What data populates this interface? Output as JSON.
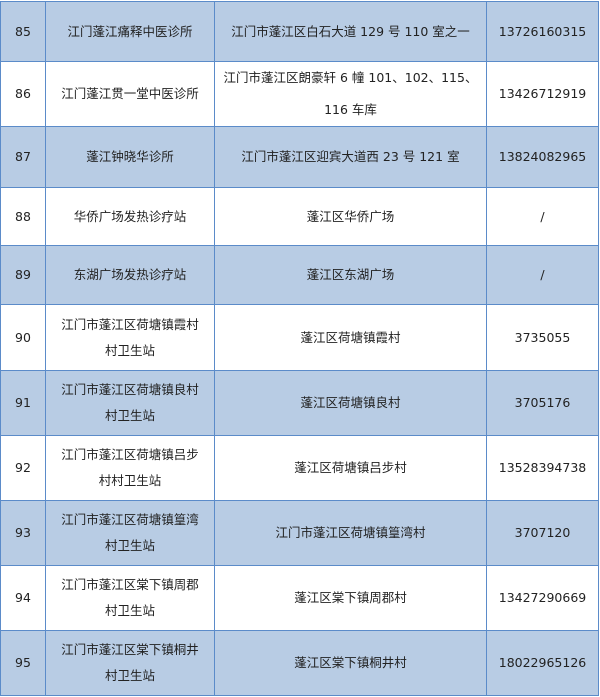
{
  "colors": {
    "shaded_row": "#b8cce4",
    "border": "#5b8bc9"
  },
  "rows": [
    {
      "no": "85",
      "name": "江门蓬江痛释中医诊所",
      "address": "江门市蓬江区白石大道 129 号 110 室之一",
      "phone": "13726160315"
    },
    {
      "no": "86",
      "name": "江门蓬江贯一堂中医诊所",
      "address": "江门市蓬江区朗豪轩 6 幢 101、102、115、116 车库",
      "phone": "13426712919"
    },
    {
      "no": "87",
      "name": "蓬江钟晓华诊所",
      "address": "江门市蓬江区迎宾大道西 23 号 121 室",
      "phone": "13824082965"
    },
    {
      "no": "88",
      "name": "华侨广场发热诊疗站",
      "address": "蓬江区华侨广场",
      "phone": "/"
    },
    {
      "no": "89",
      "name": "东湖广场发热诊疗站",
      "address": "蓬江区东湖广场",
      "phone": "/"
    },
    {
      "no": "90",
      "name": "江门市蓬江区荷塘镇霞村村卫生站",
      "address": "蓬江区荷塘镇霞村",
      "phone": "3735055"
    },
    {
      "no": "91",
      "name": "江门市蓬江区荷塘镇良村村卫生站",
      "address": "蓬江区荷塘镇良村",
      "phone": "3705176"
    },
    {
      "no": "92",
      "name": "江门市蓬江区荷塘镇吕步村村卫生站",
      "address": "蓬江区荷塘镇吕步村",
      "phone": "13528394738"
    },
    {
      "no": "93",
      "name": "江门市蓬江区荷塘镇篁湾村卫生站",
      "address": "江门市蓬江区荷塘镇篁湾村",
      "phone": "3707120"
    },
    {
      "no": "94",
      "name": "江门市蓬江区棠下镇周郡村卫生站",
      "address": "蓬江区棠下镇周郡村",
      "phone": "13427290669"
    },
    {
      "no": "95",
      "name": "江门市蓬江区棠下镇桐井村卫生站",
      "address": "蓬江区棠下镇桐井村",
      "phone": "18022965126"
    }
  ]
}
